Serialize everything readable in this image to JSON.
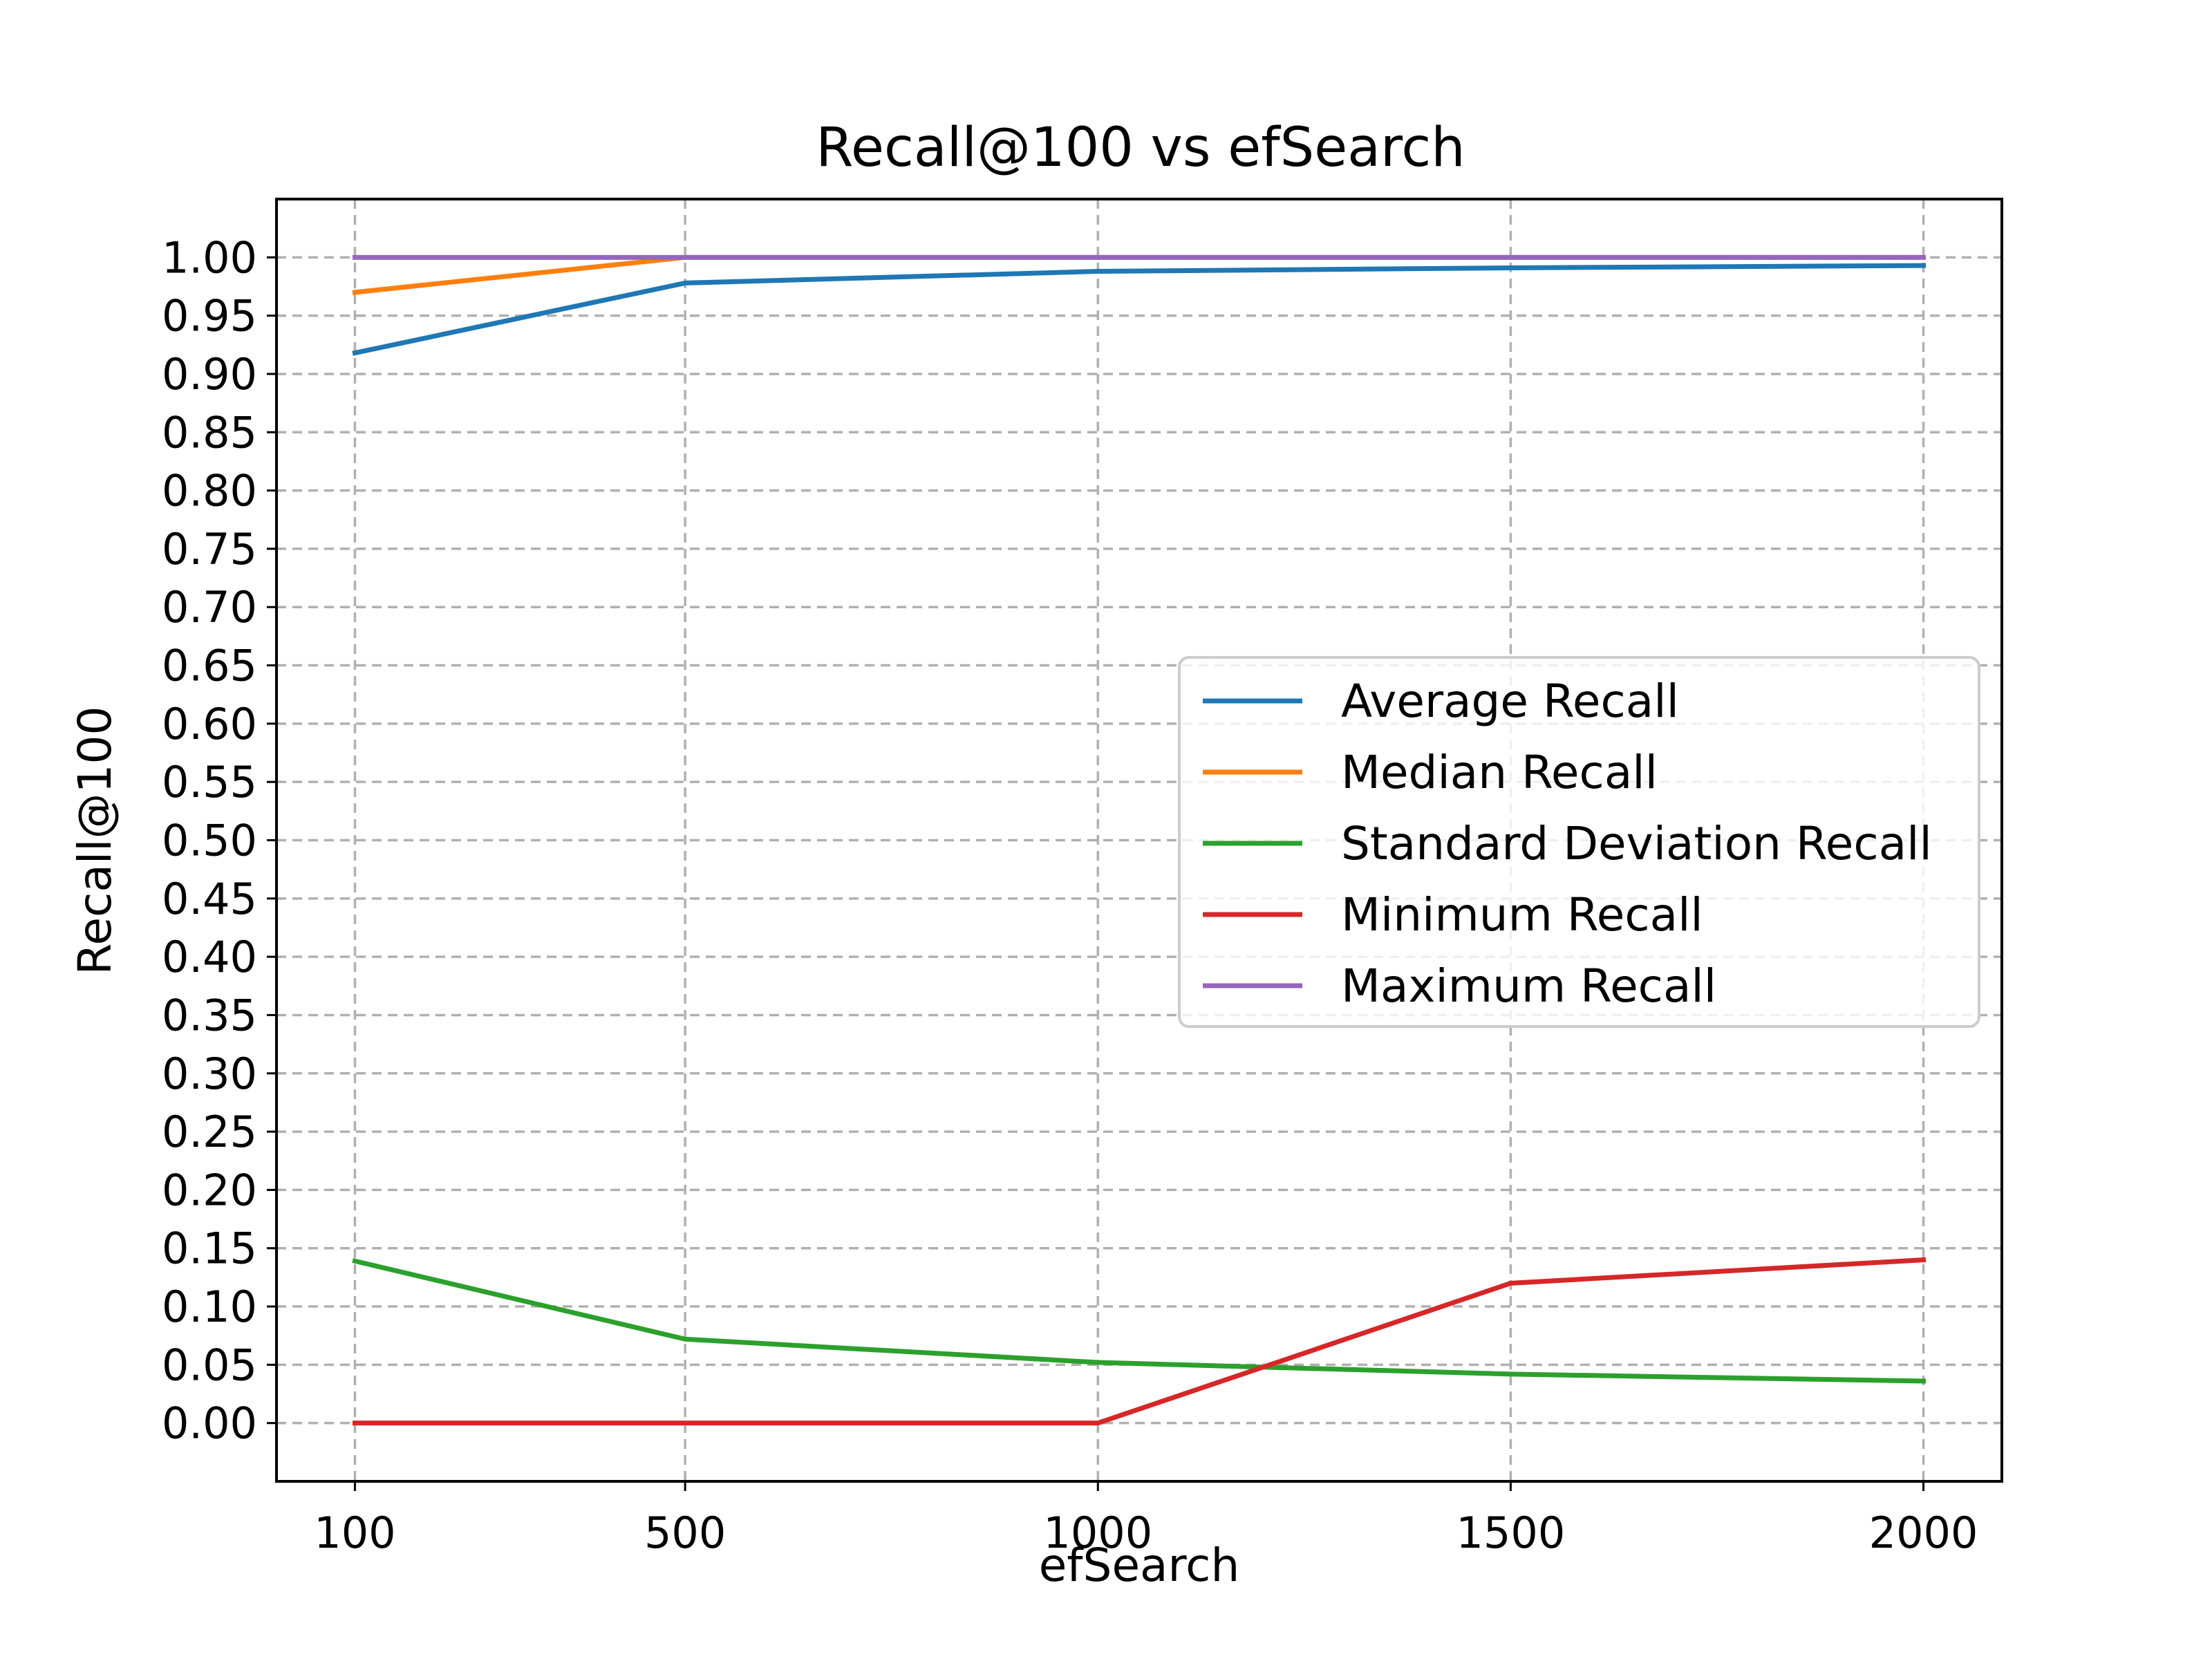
{
  "chart_data": {
    "type": "line",
    "title": "Recall@100 vs efSearch",
    "xlabel": "efSearch",
    "ylabel": "Recall@100",
    "x": [
      100,
      500,
      1000,
      1500,
      2000
    ],
    "x_ticks": [
      "100",
      "500",
      "1000",
      "1500",
      "2000"
    ],
    "y_ticks": [
      "0.00",
      "0.05",
      "0.10",
      "0.15",
      "0.20",
      "0.25",
      "0.30",
      "0.35",
      "0.40",
      "0.45",
      "0.50",
      "0.55",
      "0.60",
      "0.65",
      "0.70",
      "0.75",
      "0.80",
      "0.85",
      "0.90",
      "0.95",
      "1.00"
    ],
    "xlim": [
      5,
      2095
    ],
    "ylim": [
      -0.05,
      1.05
    ],
    "grid": true,
    "legend_position": "center-right",
    "series": [
      {
        "name": "Average Recall",
        "color": "#1f77b4",
        "values": [
          0.918,
          0.978,
          0.988,
          0.991,
          0.993
        ]
      },
      {
        "name": "Median Recall",
        "color": "#ff7f0e",
        "values": [
          0.97,
          1.0,
          1.0,
          1.0,
          1.0
        ]
      },
      {
        "name": "Standard Deviation Recall",
        "color": "#2ca02c",
        "values": [
          0.139,
          0.072,
          0.052,
          0.042,
          0.036
        ]
      },
      {
        "name": "Minimum Recall",
        "color": "#d62728",
        "values": [
          0.0,
          0.0,
          0.0,
          0.12,
          0.14
        ]
      },
      {
        "name": "Maximum Recall",
        "color": "#9467bd",
        "values": [
          1.0,
          1.0,
          1.0,
          1.0,
          1.0
        ]
      }
    ]
  }
}
